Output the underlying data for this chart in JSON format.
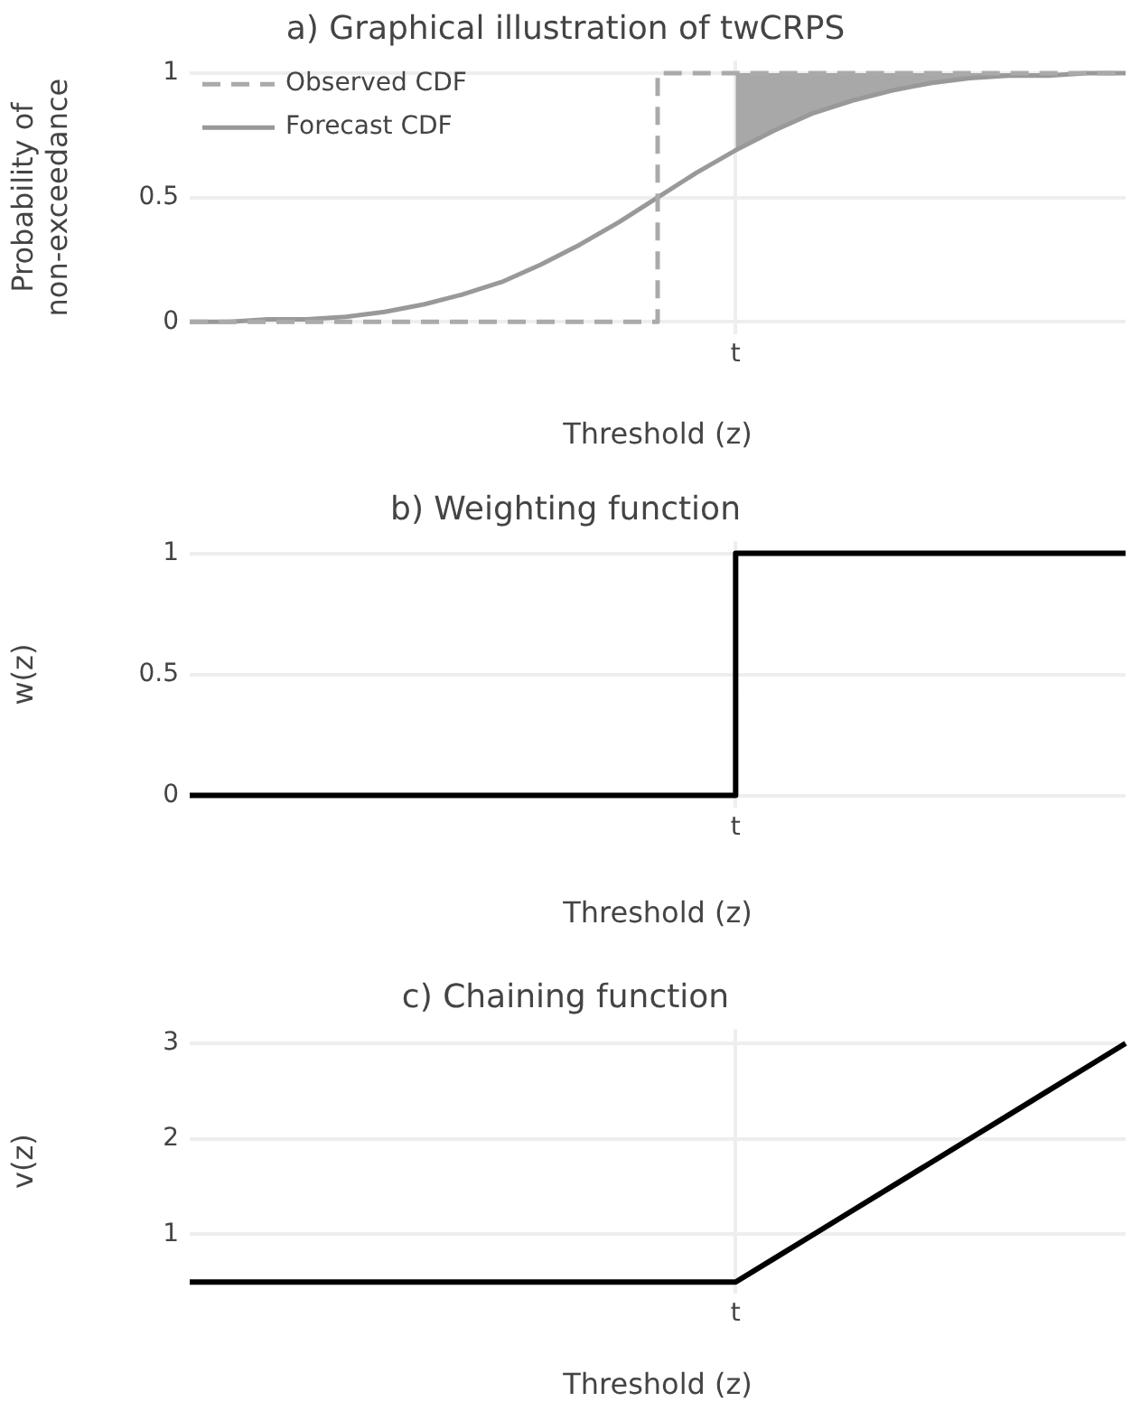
{
  "chart_data": [
    {
      "type": "line",
      "title": "a) Graphical illustration of twCRPS",
      "xlabel": "Threshold (z)",
      "ylabel": "Probability of\nnon-exceedance",
      "categories": [
        null,
        null,
        null,
        null,
        null,
        null,
        null,
        null,
        null,
        null,
        null,
        null,
        null,
        null,
        "t",
        null,
        null,
        null,
        null,
        null,
        null,
        null,
        null,
        null,
        null
      ],
      "ylim": [
        -0.05,
        1.05
      ],
      "yticks": [
        0,
        0.5,
        1
      ],
      "grid": true,
      "legend": "top left",
      "series": [
        {
          "name": "Observed CDF",
          "type": "step",
          "color": "#aaaaaa",
          "line_style": "dashed",
          "values": [
            0,
            0,
            0,
            0,
            0,
            0,
            0,
            0,
            0,
            0,
            0,
            0,
            0,
            1,
            1,
            1,
            1,
            1,
            1,
            1,
            1,
            1,
            1,
            1,
            1
          ]
        },
        {
          "name": "Forecast CDF",
          "type": "line",
          "color": "#999999",
          "line_style": "solid",
          "values": [
            0,
            0,
            0.01,
            0.01,
            0.02,
            0.04,
            0.07,
            0.11,
            0.16,
            0.23,
            0.31,
            0.4,
            0.5,
            0.6,
            0.69,
            0.77,
            0.84,
            0.89,
            0.93,
            0.96,
            0.98,
            0.99,
            0.99,
            1,
            1
          ],
          "lower": [
            null,
            null,
            null,
            null,
            null,
            null,
            null,
            null,
            null,
            null,
            null,
            null,
            null,
            null,
            0.69,
            0.77,
            0.84,
            0.89,
            0.93,
            0.96,
            0.98,
            0.99,
            0.99,
            1,
            1
          ],
          "upper": [
            null,
            null,
            null,
            null,
            null,
            null,
            null,
            null,
            null,
            null,
            null,
            null,
            null,
            null,
            1,
            1,
            1,
            1,
            1,
            1,
            1,
            1,
            1,
            1,
            1
          ]
        }
      ]
    },
    {
      "type": "step",
      "title": "b) Weighting function",
      "xlabel": "Threshold (z)",
      "ylabel": "w(z)",
      "categories": [
        null,
        null,
        null,
        null,
        null,
        null,
        null,
        null,
        null,
        null,
        null,
        null,
        null,
        null,
        "t",
        null,
        null,
        null,
        null,
        null,
        null,
        null,
        null,
        null,
        null
      ],
      "ylim": [
        -0.05,
        1.05
      ],
      "yticks": [
        0,
        0.5,
        1
      ],
      "grid": true,
      "series": [
        {
          "color": "#000000",
          "values": [
            0,
            0,
            0,
            0,
            0,
            0,
            0,
            0,
            0,
            0,
            0,
            0,
            0,
            0,
            0,
            1,
            1,
            1,
            1,
            1,
            1,
            1,
            1,
            1,
            1
          ]
        }
      ]
    },
    {
      "type": "line",
      "title": "c) Chaining function",
      "xlabel": "Threshold (z)",
      "ylabel": "v(z)",
      "categories": [
        null,
        null,
        null,
        null,
        null,
        null,
        null,
        null,
        null,
        null,
        null,
        null,
        null,
        null,
        "t",
        null,
        null,
        null,
        null,
        null,
        null,
        null,
        null,
        null,
        null
      ],
      "ylim": [
        0.38,
        3.15
      ],
      "yticks": [
        1,
        2,
        3
      ],
      "grid": true,
      "series": [
        {
          "color": "#000000",
          "values": [
            0.5,
            0.5,
            0.5,
            0.5,
            0.5,
            0.5,
            0.5,
            0.5,
            0.5,
            0.5,
            0.5,
            0.5,
            0.5,
            0.5,
            0.5,
            0.75,
            1,
            1.25,
            1.5,
            1.75,
            2,
            2.25,
            2.5,
            2.75,
            3
          ]
        }
      ]
    }
  ]
}
